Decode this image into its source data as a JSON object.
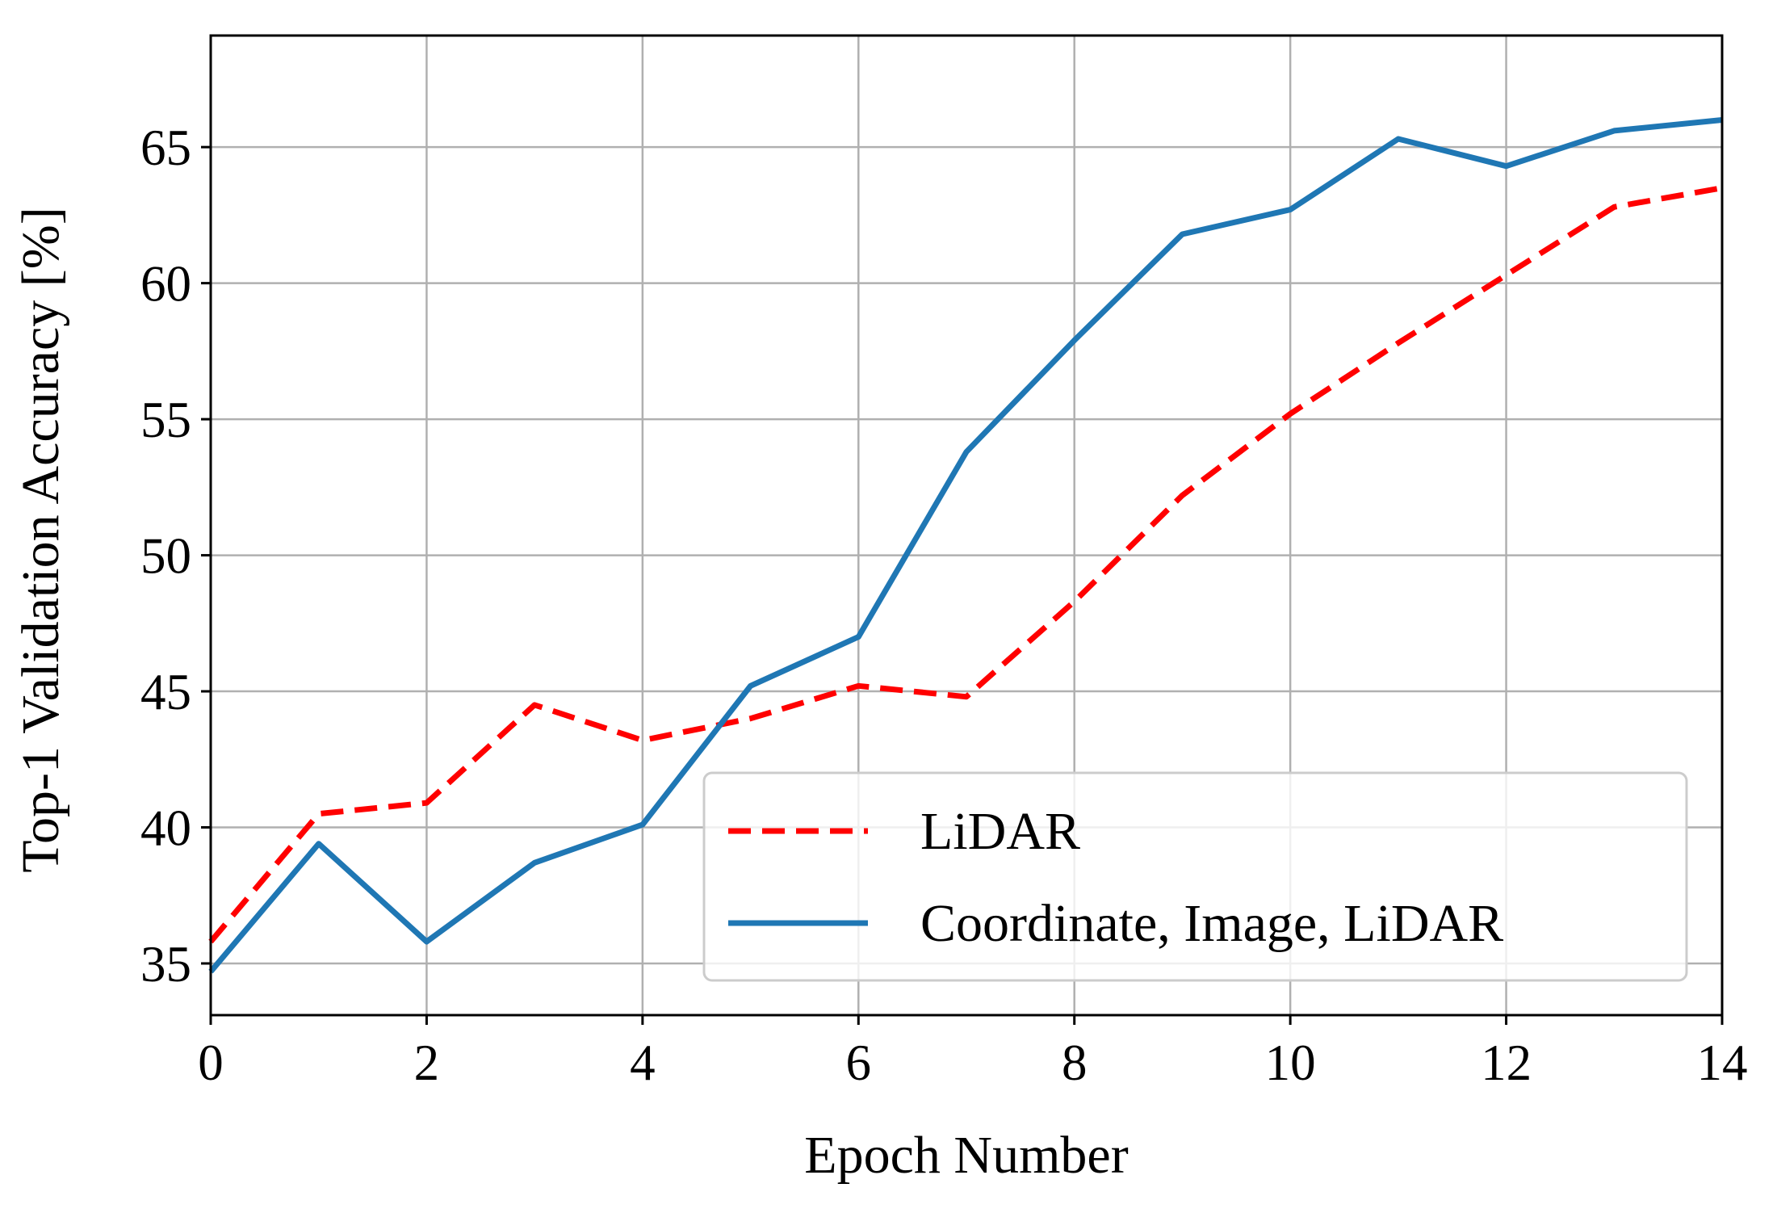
{
  "chart_data": {
    "type": "line",
    "title": "",
    "xlabel": "Epoch Number",
    "ylabel": "Top-1 Validation Accuracy [%]",
    "xlim": [
      0,
      14
    ],
    "ylim": [
      33.1,
      69.1
    ],
    "xticks": [
      0,
      2,
      4,
      6,
      8,
      10,
      12,
      14
    ],
    "xtick_labels": [
      "0",
      "2",
      "4",
      "6",
      "8",
      "10",
      "12",
      "14"
    ],
    "yticks": [
      35,
      40,
      45,
      50,
      55,
      60,
      65
    ],
    "ytick_labels": [
      "35",
      "40",
      "45",
      "50",
      "55",
      "60",
      "65"
    ],
    "grid": true,
    "legend_position": "lower-right",
    "x": [
      0,
      1,
      2,
      3,
      4,
      5,
      6,
      7,
      8,
      9,
      10,
      11,
      12,
      13,
      14
    ],
    "series": [
      {
        "name": "LiDAR",
        "style": "dashed",
        "color": "#ff0000",
        "values": [
          35.8,
          40.5,
          40.9,
          44.5,
          43.2,
          44.0,
          45.2,
          44.8,
          48.3,
          52.2,
          55.2,
          57.8,
          60.3,
          62.8,
          63.5
        ]
      },
      {
        "name": "Coordinate, Image, LiDAR",
        "style": "solid",
        "color": "#1f77b4",
        "values": [
          34.7,
          39.4,
          35.8,
          38.7,
          40.1,
          45.2,
          47.0,
          53.8,
          57.9,
          61.8,
          62.7,
          65.3,
          64.3,
          65.6,
          66.0
        ]
      }
    ]
  },
  "colors": {
    "grid": "#b0b0b0",
    "axes": "#000000",
    "legend_border": "#cccccc"
  }
}
